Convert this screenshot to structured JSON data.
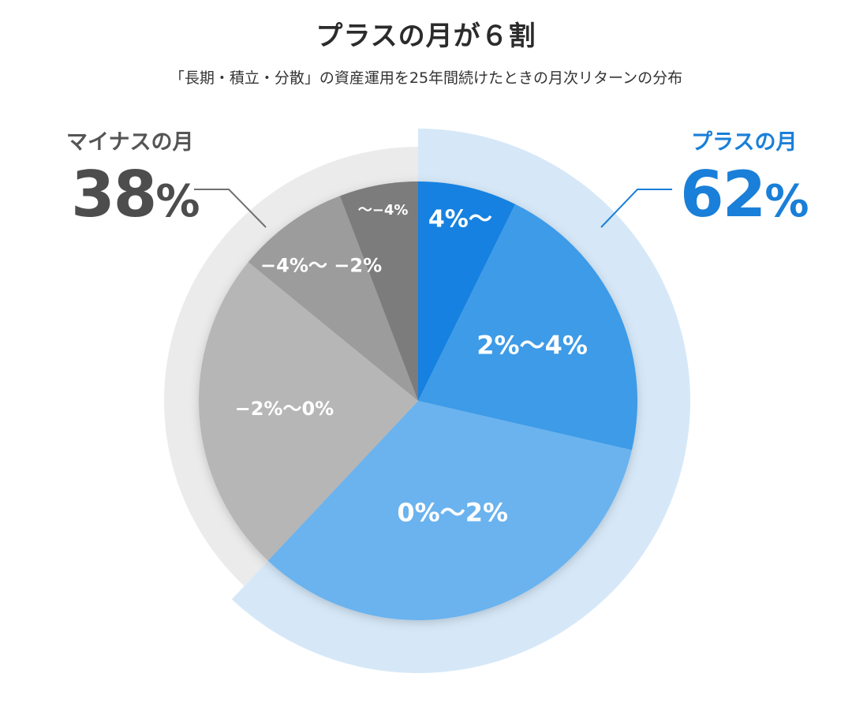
{
  "title": "プラスの月が６割",
  "subtitle": "「長期・積立・分散」の資産運用を25年間続けたときの月次リターンの分布",
  "groups": {
    "minus": {
      "label": "マイナスの月",
      "value": "38",
      "unit": "%",
      "color": "#ebebeb"
    },
    "plus": {
      "label": "プラスの月",
      "value": "62",
      "unit": "%",
      "color": "#d6e8f8"
    }
  },
  "chart_data": {
    "type": "pie",
    "title": "プラスの月が６割",
    "categories": [
      "4%〜",
      "2%〜4%",
      "0%〜2%",
      "−2%〜0%",
      "−4%〜 −2%",
      "〜−4%"
    ],
    "values": [
      7.3,
      21.3,
      33.4,
      23.9,
      8.3,
      5.8
    ],
    "colors": [
      "#1581e0",
      "#3d9be8",
      "#6ab3ee",
      "#b6b6b6",
      "#9c9c9c",
      "#7c7c7c"
    ],
    "groups": [
      {
        "name": "プラスの月",
        "value": 62,
        "slices": [
          "4%〜",
          "2%〜4%",
          "0%〜2%"
        ]
      },
      {
        "name": "マイナスの月",
        "value": 38,
        "slices": [
          "−2%〜0%",
          "−4%〜 −2%",
          "〜−4%"
        ]
      }
    ],
    "start": "12 o'clock",
    "direction": "clockwise"
  }
}
